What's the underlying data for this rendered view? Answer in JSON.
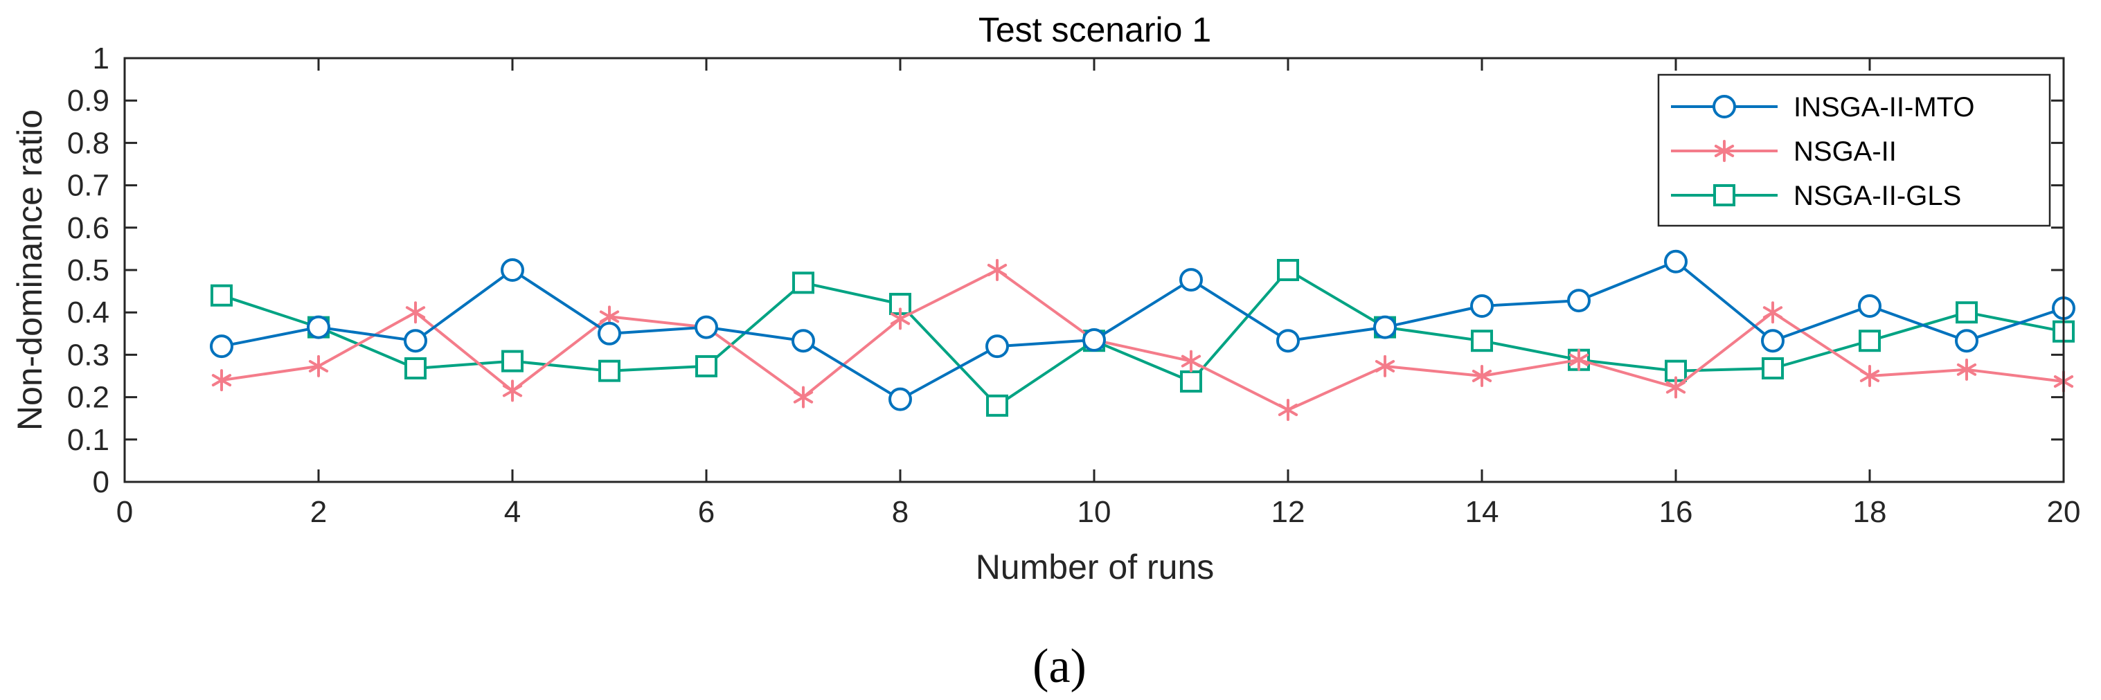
{
  "caption": "(a)",
  "chart_data": {
    "type": "line",
    "title": "Test scenario 1",
    "xlabel": "Number of runs",
    "ylabel": "Non-dominance ratio",
    "xlim": [
      0,
      20
    ],
    "ylim": [
      0,
      1
    ],
    "xticks": [
      0,
      2,
      4,
      6,
      8,
      10,
      12,
      14,
      16,
      18,
      20
    ],
    "yticks": [
      0,
      0.1,
      0.2,
      0.3,
      0.4,
      0.5,
      0.6,
      0.7,
      0.8,
      0.9,
      1
    ],
    "ytick_labels": [
      "0",
      "0.1",
      "0.2",
      "0.3",
      "0.4",
      "0.5",
      "0.6",
      "0.7",
      "0.8",
      "0.9",
      "1"
    ],
    "legend_position": "top-right",
    "x": [
      1,
      2,
      3,
      4,
      5,
      6,
      7,
      8,
      9,
      10,
      11,
      12,
      13,
      14,
      15,
      16,
      17,
      18,
      19,
      20
    ],
    "series": [
      {
        "name": "INSGA-II-MTO",
        "color": "#0072BD",
        "marker": "circle",
        "values": [
          0.32,
          0.365,
          0.333,
          0.5,
          0.35,
          0.365,
          0.333,
          0.195,
          0.32,
          0.335,
          0.477,
          0.333,
          0.365,
          0.415,
          0.428,
          0.52,
          0.333,
          0.415,
          0.333,
          0.41
        ]
      },
      {
        "name": "NSGA-II",
        "color": "#F47C8A",
        "marker": "asterisk",
        "values": [
          0.24,
          0.273,
          0.4,
          0.215,
          0.39,
          0.365,
          0.2,
          0.385,
          0.5,
          0.335,
          0.285,
          0.17,
          0.273,
          0.25,
          0.288,
          0.223,
          0.4,
          0.25,
          0.265,
          0.237
        ]
      },
      {
        "name": "NSGA-II-GLS",
        "color": "#00A383",
        "marker": "square",
        "values": [
          0.44,
          0.365,
          0.268,
          0.285,
          0.262,
          0.273,
          0.47,
          0.42,
          0.18,
          0.333,
          0.237,
          0.5,
          0.365,
          0.333,
          0.288,
          0.262,
          0.268,
          0.333,
          0.4,
          0.355
        ]
      }
    ]
  }
}
